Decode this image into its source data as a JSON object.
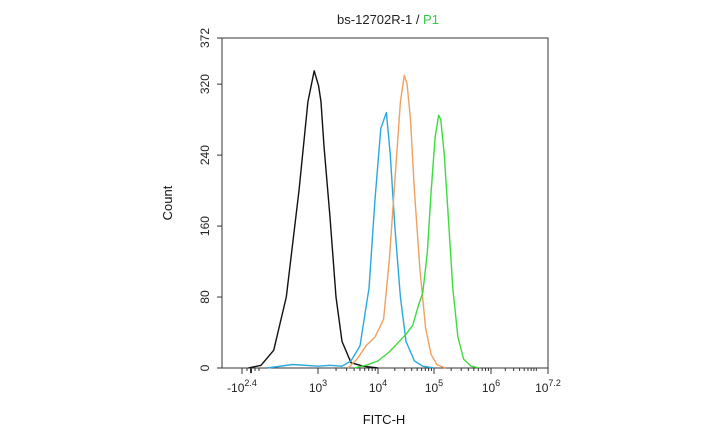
{
  "chart_data": {
    "type": "line",
    "title": "bs-12702R-1",
    "title_separator": " / ",
    "title_gate": "P1",
    "title_gate_color": "#2ecc40",
    "xlabel": "FITC-H",
    "ylabel": "Count",
    "ylim": [
      0,
      372
    ],
    "yticks": [
      0,
      80,
      160,
      240,
      320,
      372
    ],
    "x_scale": "biexponential-log",
    "xlim": [
      "-10^2.4",
      "10^7.2"
    ],
    "xticks": [
      {
        "base": "-10",
        "exp": "2.4"
      },
      {
        "base": "10",
        "exp": "3"
      },
      {
        "base": "10",
        "exp": "4"
      },
      {
        "base": "10",
        "exp": "5"
      },
      {
        "base": "10",
        "exp": "6"
      },
      {
        "base": "10",
        "exp": "7.2"
      }
    ],
    "grid": false,
    "series": [
      {
        "color": "#111111",
        "points": [
          [
            2.45,
            0
          ],
          [
            2.55,
            3
          ],
          [
            2.65,
            20
          ],
          [
            2.75,
            80
          ],
          [
            2.85,
            200
          ],
          [
            2.92,
            300
          ],
          [
            2.97,
            335
          ],
          [
            3.01,
            318
          ],
          [
            3.05,
            300
          ],
          [
            3.1,
            250
          ],
          [
            3.2,
            170
          ],
          [
            3.3,
            80
          ],
          [
            3.4,
            30
          ],
          [
            3.55,
            6
          ],
          [
            3.75,
            2
          ],
          [
            4.0,
            0
          ]
        ]
      },
      {
        "color": "#29a8e0",
        "points": [
          [
            2.6,
            0
          ],
          [
            2.8,
            4
          ],
          [
            3.0,
            2
          ],
          [
            3.2,
            3
          ],
          [
            3.4,
            2
          ],
          [
            3.55,
            8
          ],
          [
            3.7,
            25
          ],
          [
            3.85,
            90
          ],
          [
            3.95,
            190
          ],
          [
            4.05,
            270
          ],
          [
            4.15,
            288
          ],
          [
            4.22,
            240
          ],
          [
            4.3,
            160
          ],
          [
            4.4,
            80
          ],
          [
            4.5,
            30
          ],
          [
            4.65,
            8
          ],
          [
            4.8,
            2
          ],
          [
            5.0,
            0
          ]
        ]
      },
      {
        "color": "#f0a060",
        "points": [
          [
            3.5,
            0
          ],
          [
            3.65,
            10
          ],
          [
            3.8,
            25
          ],
          [
            3.95,
            35
          ],
          [
            4.1,
            55
          ],
          [
            4.2,
            120
          ],
          [
            4.3,
            210
          ],
          [
            4.4,
            300
          ],
          [
            4.47,
            330
          ],
          [
            4.52,
            320
          ],
          [
            4.58,
            280
          ],
          [
            4.65,
            200
          ],
          [
            4.75,
            110
          ],
          [
            4.85,
            45
          ],
          [
            4.95,
            15
          ],
          [
            5.05,
            4
          ],
          [
            5.2,
            0
          ]
        ]
      },
      {
        "color": "#3ddc3d",
        "points": [
          [
            3.6,
            0
          ],
          [
            3.8,
            3
          ],
          [
            4.0,
            8
          ],
          [
            4.2,
            18
          ],
          [
            4.35,
            28
          ],
          [
            4.5,
            38
          ],
          [
            4.62,
            48
          ],
          [
            4.72,
            70
          ],
          [
            4.8,
            85
          ],
          [
            4.88,
            130
          ],
          [
            4.95,
            200
          ],
          [
            5.02,
            260
          ],
          [
            5.08,
            285
          ],
          [
            5.12,
            280
          ],
          [
            5.18,
            240
          ],
          [
            5.25,
            170
          ],
          [
            5.33,
            90
          ],
          [
            5.42,
            35
          ],
          [
            5.52,
            10
          ],
          [
            5.65,
            2
          ],
          [
            5.8,
            0
          ]
        ]
      }
    ]
  }
}
